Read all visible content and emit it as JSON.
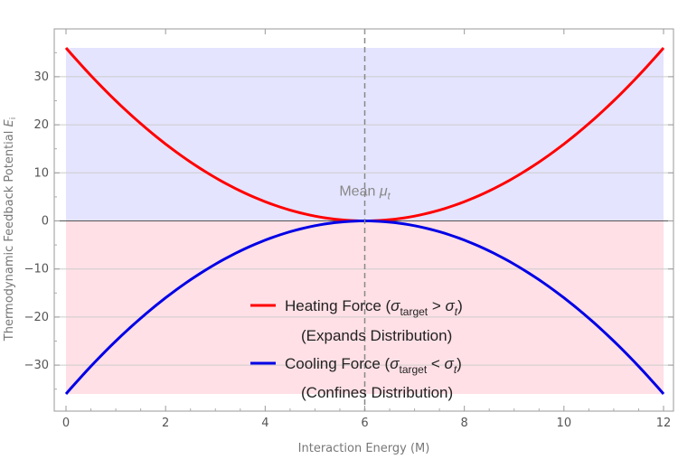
{
  "chart_data": {
    "type": "line",
    "title": "",
    "xlabel": "Interaction Energy (M)",
    "ylabel_main": "Thermodynamic Feedback Potential ",
    "ylabel_var": "E",
    "ylabel_sub": "i",
    "xlim": [
      0,
      12
    ],
    "ylim": [
      -40,
      40
    ],
    "x_ticks": [
      0,
      2,
      4,
      6,
      8,
      10,
      12
    ],
    "x_tick_labels": [
      "0",
      "2",
      "4",
      "6",
      "8",
      "10",
      "12"
    ],
    "y_ticks": [
      -30,
      -20,
      -10,
      0,
      10,
      20,
      30
    ],
    "y_tick_labels": [
      "−30",
      "−20",
      "−10",
      "0",
      "10",
      "20",
      "30"
    ],
    "grid": "horizontal",
    "mean_line_x": 6,
    "annotation": {
      "prefix": "Mean ",
      "symbol": "μ",
      "sub": "t",
      "x": 6,
      "y": 7.5
    },
    "series": [
      {
        "name": "Heating Force",
        "color": "#ff0000",
        "fill": "#e4e4ff",
        "x": [
          0,
          1,
          2,
          3,
          4,
          5,
          6,
          7,
          8,
          9,
          10,
          11,
          12
        ],
        "y": [
          36,
          25,
          16,
          9,
          4,
          1,
          0,
          1,
          4,
          9,
          16,
          25,
          36
        ],
        "legend": {
          "prefix": "Heating Force (",
          "sym": "σ",
          "sub1": "target",
          "op": " > ",
          "sub2": "t",
          "suffix": ")",
          "line2": "(Expands Distribution)"
        }
      },
      {
        "name": "Cooling Force",
        "color": "#0000e6",
        "fill": "#ffe0e6",
        "x": [
          0,
          1,
          2,
          3,
          4,
          5,
          6,
          7,
          8,
          9,
          10,
          11,
          12
        ],
        "y": [
          -36,
          -25,
          -16,
          -9,
          -4,
          -1,
          0,
          -1,
          -4,
          -9,
          -16,
          -25,
          -36
        ],
        "legend": {
          "prefix": "Cooling Force (",
          "sym": "σ",
          "sub1": "target",
          "op": " < ",
          "sub2": "t",
          "suffix": ")",
          "line2": "(Confines Distribution)"
        }
      }
    ]
  }
}
